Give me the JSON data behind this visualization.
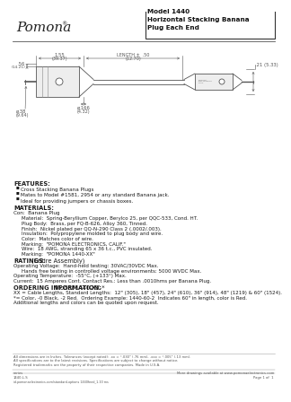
{
  "title": "Model 1440\nHorizontal Stacking Banana\nPlug Each End",
  "brand": "Pomona",
  "bg_color": "#ffffff",
  "line_color": "#666666",
  "features_header": "FEATURES:",
  "features": [
    "Cross Stacking Banana Plugs",
    "Mates to Model #1581, 2954 or any standard Banana jack.",
    "Ideal for providing jumpers or chassis boxes."
  ],
  "materials_header": "MATERIALS:",
  "materials_intro": "Con:  Banana Plug",
  "materials_lines": [
    "Material:  Spring-Beryllium Copper, Berylco 25, per QQC-533, Cond. HT.",
    "Plug Body:  Brass, per FQ-B-626, Alloy 360, Tinned.",
    "Finish:  Nickel plated per QQ-N-290 Class 2 (.0002/.003).",
    "Insulation:  Polypropylene molded to plug body and wire.",
    "Color:  Matches color of wire.",
    "Marking:  \"POMONA ELECTRONICS, CALIF.\"",
    "Wire:  18 AWG, stranding 65 x 36 t.c., PVC insulated.",
    "Marking:  \"POMONA 1440-XX\""
  ],
  "ratings_header": "RATINGS:",
  "ratings_header2": "  (Entire Assembly)",
  "ratings_lines": [
    "Operating Voltage:  Hand-held testing: 30VAC/30VDC Max.",
    "                   Hands free testing in controlled voltage environments: 5000 WVDC Max.",
    "Operating Temperature:  -55°C, (+133°) Max.",
    "Current:  15 Amperes Cont. Contact Res.: Less than .0010hms per Banana Plug."
  ],
  "ordering_header": "ORDERING INFORMATION:",
  "ordering_header2": "  Model 1440-XX-*",
  "ordering_lines": [
    "XX = Cable Lengths, Standard Lengths:  12\" (305), 18\" (457), 24\" (610), 36\" (914), 48\" (1219) & 60\" (1524).",
    "*= Color, -0 Black, -2 Red.  Ordering Example: 1440-60-2  Indicates 60\" in length, color is Red.",
    "Additional lengths and colors can be quoted upon request."
  ],
  "footer_lines": [
    "All dimensions are in Inches. Tolerances (except noted): .xx = °.030\" (.76 mm), .xxx = °.005\" (.13 mm).",
    "All specifications are to the latest revisions. Specifications are subject to change without notice.",
    "Registered trademarks are the property of their respective companies. Made in U.S.A."
  ],
  "footer_left1": "series",
  "footer_left2": "1440-L.S",
  "footer_left3": "id.pomonaelectronics.com/standard-options 1440feed_1.10 ms",
  "footer_right1": "More drawings available at www.pomonaelectronics.com",
  "footer_right2": "Page 1 of  1"
}
